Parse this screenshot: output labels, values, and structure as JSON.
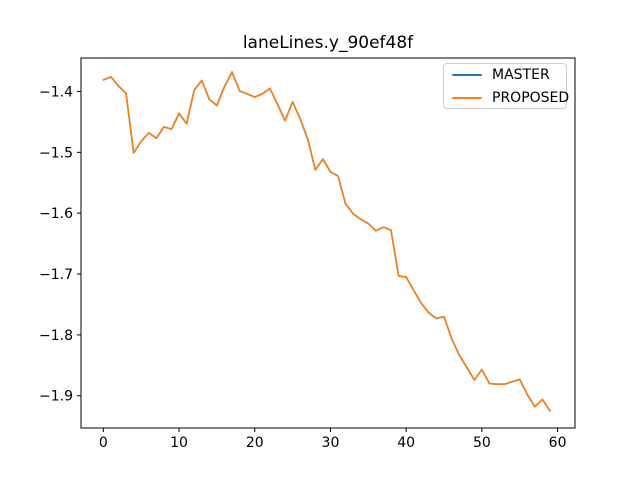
{
  "figure": {
    "background": "#ffffff"
  },
  "chart_data": {
    "type": "line",
    "title": "laneLines.y_90ef48f",
    "xlabel": "",
    "ylabel": "",
    "grid": false,
    "legend_position": "upper right",
    "legend_border_color": "#cccccc",
    "frame_color": "#000000",
    "xlim": [
      -2.95,
      62.3
    ],
    "ylim": [
      -1.953,
      -1.345
    ],
    "xticks": {
      "values": [
        0,
        10,
        20,
        30,
        40,
        50,
        60
      ],
      "labels": [
        "0",
        "10",
        "20",
        "30",
        "40",
        "50",
        "60"
      ]
    },
    "yticks": {
      "values": [
        -1.4,
        -1.5,
        -1.6,
        -1.7,
        -1.8,
        -1.9
      ],
      "labels": [
        "−1.4",
        "−1.5",
        "−1.6",
        "−1.7",
        "−1.8",
        "−1.9"
      ]
    },
    "x": [
      0,
      1,
      2,
      3,
      4,
      5,
      6,
      7,
      8,
      9,
      10,
      11,
      12,
      13,
      14,
      15,
      16,
      17,
      18,
      19,
      20,
      21,
      22,
      23,
      24,
      25,
      26,
      27,
      28,
      29,
      30,
      31,
      32,
      33,
      34,
      35,
      36,
      37,
      38,
      39,
      40,
      41,
      42,
      43,
      44,
      45,
      46,
      47,
      48,
      49,
      50,
      51,
      52,
      53,
      54,
      55,
      56,
      57,
      58,
      59
    ],
    "series": [
      {
        "name": "MASTER",
        "color": "#1f77b4",
        "values": [
          -1.381,
          -1.376,
          -1.391,
          -1.403,
          -1.501,
          -1.482,
          -1.468,
          -1.477,
          -1.458,
          -1.462,
          -1.436,
          -1.453,
          -1.398,
          -1.382,
          -1.413,
          -1.423,
          -1.392,
          -1.368,
          -1.399,
          -1.404,
          -1.409,
          -1.404,
          -1.395,
          -1.421,
          -1.448,
          -1.417,
          -1.445,
          -1.478,
          -1.529,
          -1.511,
          -1.532,
          -1.539,
          -1.585,
          -1.601,
          -1.61,
          -1.617,
          -1.629,
          -1.623,
          -1.628,
          -1.703,
          -1.705,
          -1.727,
          -1.748,
          -1.764,
          -1.773,
          -1.77,
          -1.806,
          -1.833,
          -1.853,
          -1.874,
          -1.857,
          -1.88,
          -1.881,
          -1.881,
          -1.877,
          -1.873,
          -1.898,
          -1.918,
          -1.906,
          -1.925
        ]
      },
      {
        "name": "PROPOSED",
        "color": "#ff7f0e",
        "values": [
          -1.381,
          -1.376,
          -1.391,
          -1.403,
          -1.501,
          -1.482,
          -1.468,
          -1.477,
          -1.458,
          -1.462,
          -1.436,
          -1.453,
          -1.398,
          -1.382,
          -1.413,
          -1.423,
          -1.392,
          -1.368,
          -1.399,
          -1.404,
          -1.409,
          -1.404,
          -1.395,
          -1.421,
          -1.448,
          -1.417,
          -1.445,
          -1.478,
          -1.529,
          -1.511,
          -1.532,
          -1.539,
          -1.585,
          -1.601,
          -1.61,
          -1.617,
          -1.629,
          -1.623,
          -1.628,
          -1.703,
          -1.705,
          -1.727,
          -1.748,
          -1.764,
          -1.773,
          -1.77,
          -1.806,
          -1.833,
          -1.853,
          -1.874,
          -1.857,
          -1.88,
          -1.881,
          -1.881,
          -1.877,
          -1.873,
          -1.898,
          -1.918,
          -1.906,
          -1.925
        ]
      }
    ]
  }
}
